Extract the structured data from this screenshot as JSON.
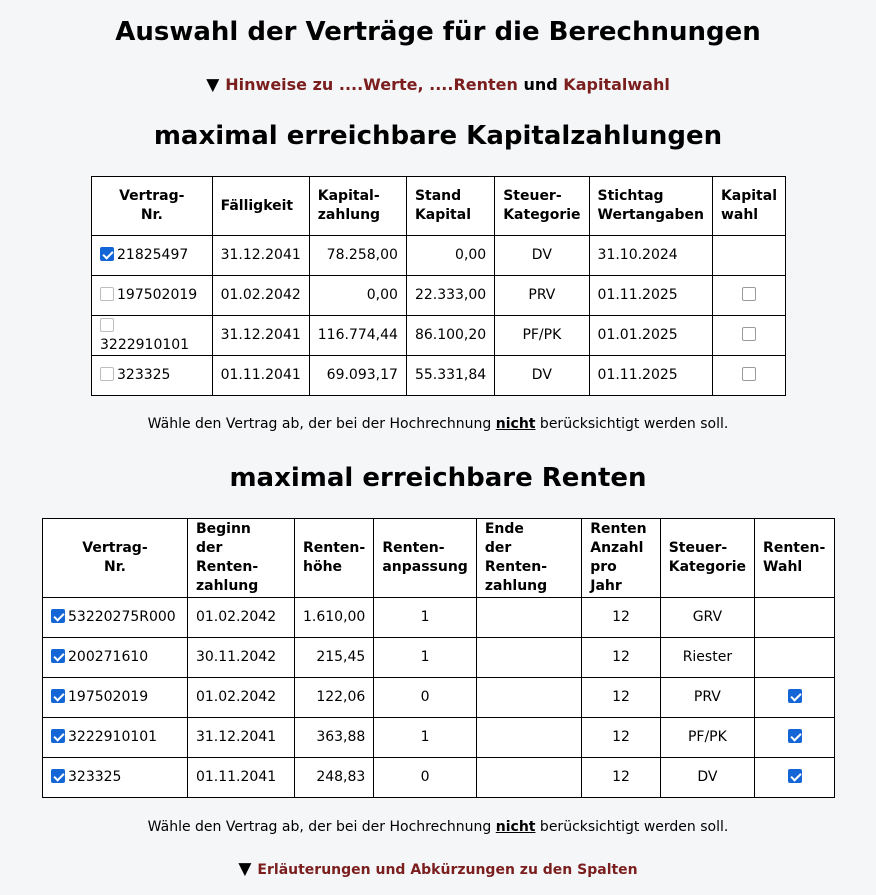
{
  "page_title": "Auswahl der Verträge für die Berechnungen",
  "hinweise": {
    "toggle": "▼",
    "part1": "Hinweise zu ....Werte, ....Renten",
    "part2": " und ",
    "part3": "Kapitalwahl"
  },
  "kapital": {
    "title": "maximal erreichbare Kapitalzahlungen",
    "headers": {
      "vertrag_l1": "Vertrag-",
      "vertrag_l2": "Nr.",
      "faelligkeit": "Fälligkeit",
      "kapitalzahlung_l1": "Kapital-",
      "kapitalzahlung_l2": "zahlung",
      "stand_l1": "Stand",
      "stand_l2": "Kapital",
      "steuer_l1": "Steuer-",
      "steuer_l2": "Kategorie",
      "stichtag_l1": "Stichtag",
      "stichtag_l2": "Wertangaben",
      "kapitalwahl_l1": "Kapital",
      "kapitalwahl_l2": "wahl"
    },
    "rows": [
      {
        "nr": "21825497",
        "faellig": "31.12.2041",
        "kapital": "78.258,00",
        "stand": "0,00",
        "steuer": "DV",
        "stichtag": "31.10.2024"
      },
      {
        "nr": "197502019",
        "faellig": "01.02.2042",
        "kapital": "0,00",
        "stand": "22.333,00",
        "steuer": "PRV",
        "stichtag": "01.11.2025"
      },
      {
        "nr": "3222910101",
        "faellig": "31.12.2041",
        "kapital": "116.774,44",
        "stand": "86.100,20",
        "steuer": "PF/PK",
        "stichtag": "01.01.2025"
      },
      {
        "nr": "323325",
        "faellig": "01.11.2041",
        "kapital": "69.093,17",
        "stand": "55.331,84",
        "steuer": "DV",
        "stichtag": "01.11.2025"
      }
    ],
    "note_pre": "Wähle den Vertrag ab, der bei der Hochrechnung ",
    "note_bold": "nicht",
    "note_post": " berücksichtigt werden soll."
  },
  "renten": {
    "title": "maximal erreichbare Renten",
    "headers": {
      "vertrag_l1": "Vertrag-",
      "vertrag_l2": "Nr.",
      "beginn_l1": "Beginn",
      "beginn_l2": "der Renten-",
      "beginn_l3": "zahlung",
      "hoehe_l1": "Renten-",
      "hoehe_l2": "höhe",
      "anpassung_l1": "Renten-",
      "anpassung_l2": "anpassung",
      "ende_l1": "Ende",
      "ende_l2": "der Renten-",
      "ende_l3": "zahlung",
      "anzahl_l1": "Renten",
      "anzahl_l2": "Anzahl",
      "anzahl_l3": "pro Jahr",
      "steuer_l1": "Steuer-",
      "steuer_l2": "Kategorie",
      "wahl_l1": "Renten-",
      "wahl_l2": "Wahl"
    },
    "rows": [
      {
        "nr": "53220275R000",
        "beginn": "01.02.2042",
        "hoehe": "1.610,00",
        "anpassung": "1",
        "ende": "",
        "anzahl": "12",
        "steuer": "GRV"
      },
      {
        "nr": "200271610",
        "beginn": "30.11.2042",
        "hoehe": "215,45",
        "anpassung": "1",
        "ende": "",
        "anzahl": "12",
        "steuer": "Riester"
      },
      {
        "nr": "197502019",
        "beginn": "01.02.2042",
        "hoehe": "122,06",
        "anpassung": "0",
        "ende": "",
        "anzahl": "12",
        "steuer": "PRV"
      },
      {
        "nr": "3222910101",
        "beginn": "31.12.2041",
        "hoehe": "363,88",
        "anpassung": "1",
        "ende": "",
        "anzahl": "12",
        "steuer": "PF/PK"
      },
      {
        "nr": "323325",
        "beginn": "01.11.2041",
        "hoehe": "248,83",
        "anpassung": "0",
        "ende": "",
        "anzahl": "12",
        "steuer": "DV"
      }
    ],
    "note_pre": "Wähle den Vertrag ab, der bei der Hochrechnung ",
    "note_bold": "nicht",
    "note_post": " berücksichtigt werden soll."
  },
  "erlaeuterungen": {
    "toggle": "▼",
    "label": "Erläuterungen und Abkürzungen zu den Spalten"
  },
  "colors": {
    "link": "#7a1e1e",
    "checkbox_checked": "#1466d6"
  }
}
